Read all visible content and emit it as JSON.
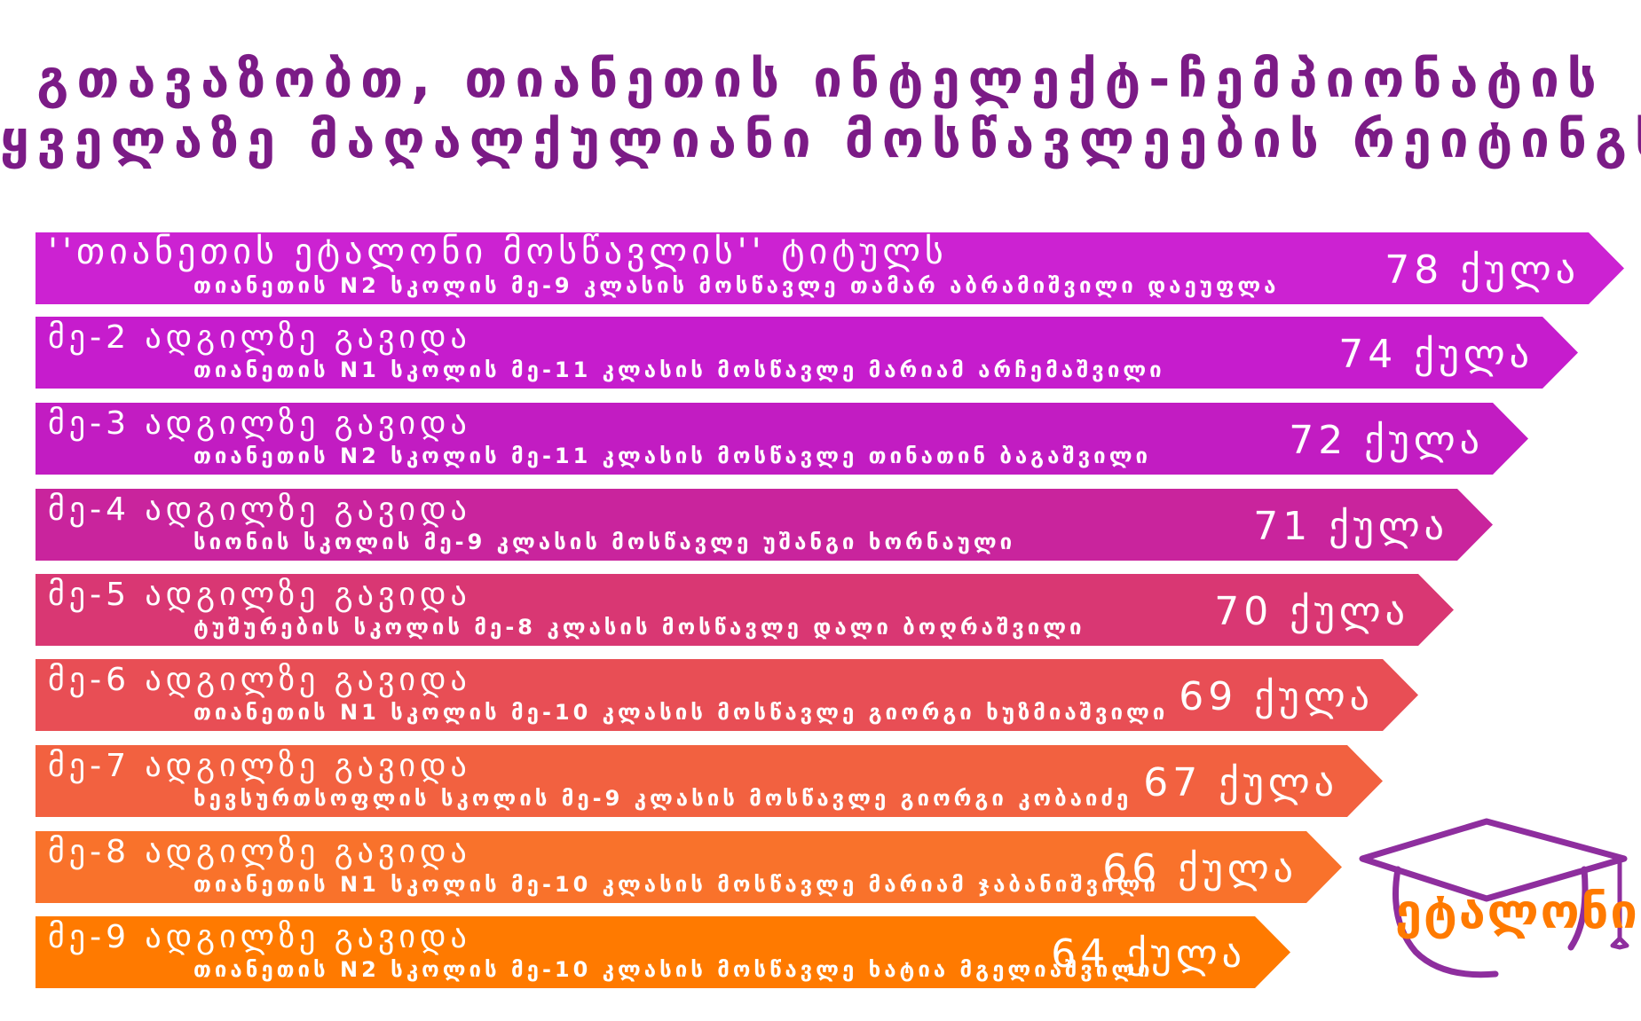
{
  "title": {
    "line1": "გთავაზობთ, თიანეთის ინტელექტ-ჩემპიონატის",
    "line2": "ყველაზე მაღალქულიანი მოსწავლეების რეიტინგს"
  },
  "ranking": [
    {
      "head": "''თიანეთის ეტალონი მოსწავლის'' ტიტულს",
      "sub": "თიანეთის N2 სკოლის მე-9 კლასის მოსწავლე თამარ აბრამიშვილი დაეუფლა",
      "score": "78 ქულა",
      "color": "#cc22d2"
    },
    {
      "head": "მე-2 ადგილზე გავიდა",
      "sub": "თიანეთის N1  სკოლის მე-11 კლასის მოსწავლე მარიამ არჩემაშვილი",
      "score": "74 ქულა",
      "color": "#c61ccd"
    },
    {
      "head": "მე-3 ადგილზე გავიდა",
      "sub": "თიანეთის N2  სკოლის მე-11 კლასის მოსწავლე თინათინ ბაგაშვილი",
      "score": "72 ქულა",
      "color": "#c21cc2"
    },
    {
      "head": "მე-4 ადგილზე გავიდა",
      "sub": "სიონის სკოლის მე-9 კლასის მოსწავლე უშანგი ხორნაული",
      "score": "71 ქულა",
      "color": "#c9249d"
    },
    {
      "head": "მე-5 ადგილზე გავიდა",
      "sub": "ტუშურების სკოლის მე-8 კლასის მოსწავლე დალი ბოღრაშვილი",
      "score": "70 ქულა",
      "color": "#d93773"
    },
    {
      "head": "მე-6 ადგილზე გავიდა",
      "sub": "თიანეთის N1 სკოლის მე-10 კლასის მოსწავლე გიორგი ხუზმიაშვილი",
      "score": "69 ქულა",
      "color": "#e84e55"
    },
    {
      "head": "მე-7 ადგილზე გავიდა",
      "sub": "ხევსურთსოფლის სკოლის მე-9 კლასის მოსწავლე გიორგი კობაიძე",
      "score": "67 ქულა",
      "color": "#f26140"
    },
    {
      "head": "მე-8 ადგილზე გავიდა",
      "sub": "თიანეთის N1 სკოლის მე-10 კლასის მოსწავლე მარიამ ჯაბანიშვილი",
      "score": "66 ქულა",
      "color": "#f9722b"
    },
    {
      "head": "მე-9 ადგილზე გავიდა",
      "sub": "თიანეთის N2 სკოლის მე-10 კლასის მოსწავლე ხატია მგელიაშვილი",
      "score": "64 ქულა",
      "color": "#ff7a00"
    }
  ],
  "logo": {
    "text": "ეტალონი",
    "cap_color": "#8e2e9e",
    "text_color": "#ff7a00"
  }
}
